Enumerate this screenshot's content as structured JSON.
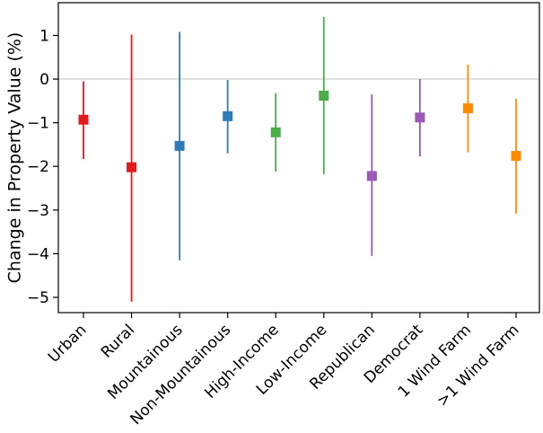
{
  "chart_data": {
    "type": "errorbar",
    "title": "",
    "xlabel": "",
    "ylabel": "Change in Property Value (%)",
    "ylim": [
      -5.35,
      1.75
    ],
    "yticks": [
      1,
      0,
      -1,
      -2,
      -3,
      -4,
      -5
    ],
    "ytick_labels": [
      "1",
      "0",
      "−1",
      "−2",
      "−3",
      "−4",
      "−5"
    ],
    "reference_line": 0,
    "grid": false,
    "categories": [
      "Urban",
      "Rural",
      "Mountainous",
      "Non-Mountainous",
      "High-Income",
      "Low-Income",
      "Republican",
      "Democrat",
      "1 Wind Farm",
      ">1 Wind Farm"
    ],
    "points": [
      {
        "category": "Urban",
        "value": -0.93,
        "low": -1.83,
        "high": -0.05,
        "color": "#e31a1c"
      },
      {
        "category": "Rural",
        "value": -2.02,
        "low": -5.1,
        "high": 1.02,
        "color": "#e31a1c"
      },
      {
        "category": "Mountainous",
        "value": -1.53,
        "low": -4.15,
        "high": 1.08,
        "color": "#2f7ab9"
      },
      {
        "category": "Non-Mountainous",
        "value": -0.85,
        "low": -1.7,
        "high": -0.02,
        "color": "#2f7ab9"
      },
      {
        "category": "High-Income",
        "value": -1.22,
        "low": -2.12,
        "high": -0.32,
        "color": "#4aad4a"
      },
      {
        "category": "Low-Income",
        "value": -0.38,
        "low": -2.18,
        "high": 1.42,
        "color": "#4aad4a"
      },
      {
        "category": "Republican",
        "value": -2.22,
        "low": -4.05,
        "high": -0.35,
        "color": "#9b59b6"
      },
      {
        "category": "Democrat",
        "value": -0.88,
        "low": -1.77,
        "high": 0.0,
        "color": "#9b59b6"
      },
      {
        "category": "1 Wind Farm",
        "value": -0.67,
        "low": -1.68,
        "high": 0.33,
        "color": "#ff8c00"
      },
      {
        "category": ">1 Wind Farm",
        "value": -1.76,
        "low": -3.08,
        "high": -0.45,
        "color": "#ff8c00"
      }
    ]
  }
}
